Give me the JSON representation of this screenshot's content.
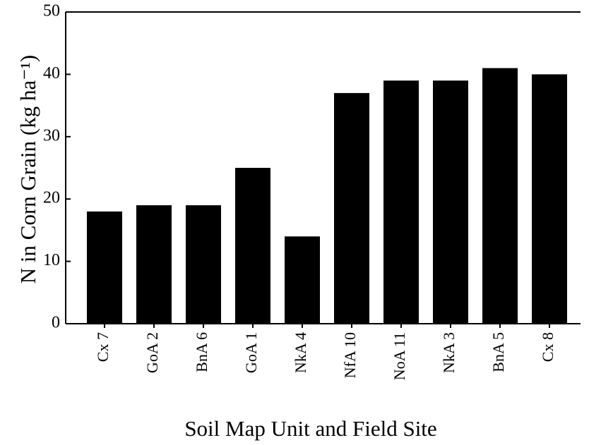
{
  "chart_data": {
    "type": "bar",
    "ylabel": "N in Corn Grain (kg ha⁻¹)",
    "xlabel": "Soil Map Unit and Field Site",
    "categories": [
      "Cx 7",
      "GoA 2",
      "BnA 6",
      "GoA 1",
      "NkA 4",
      "NfA 10",
      "NoA 11",
      "NkA 3",
      "BnA 5",
      "Cx 8"
    ],
    "values": [
      18,
      19,
      19,
      25,
      14,
      37,
      39,
      39,
      41,
      40
    ],
    "color": "#000000",
    "ylim": [
      0,
      50
    ],
    "yticks": [
      0,
      10,
      20,
      30,
      40,
      50
    ],
    "grid": false
  }
}
